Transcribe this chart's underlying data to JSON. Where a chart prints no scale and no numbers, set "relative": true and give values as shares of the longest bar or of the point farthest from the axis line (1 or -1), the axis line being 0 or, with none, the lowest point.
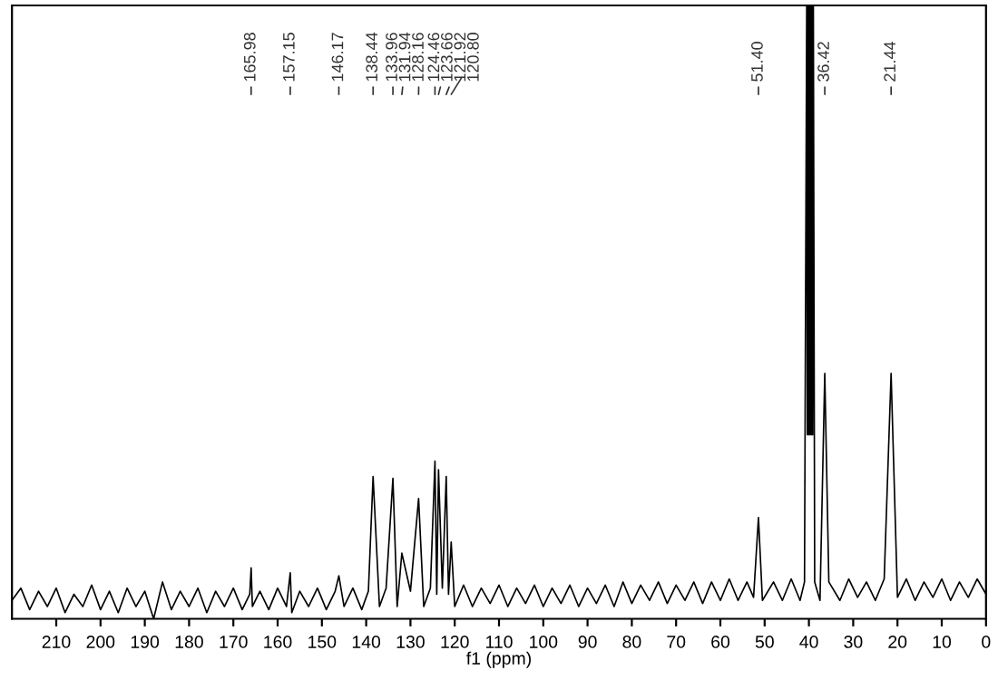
{
  "chart_data": {
    "type": "line",
    "relative": true,
    "xlabel": "f1 (ppm)",
    "color": "#000000",
    "xlim": [
      220,
      0
    ],
    "xticks": [
      210,
      200,
      190,
      180,
      170,
      160,
      150,
      140,
      130,
      120,
      110,
      100,
      90,
      80,
      70,
      60,
      50,
      40,
      30,
      20,
      10,
      0
    ],
    "tick_labels": "x",
    "grid": false,
    "x": [
      220,
      218,
      216,
      214,
      212,
      210,
      208,
      206,
      204,
      202,
      200,
      198,
      196,
      194,
      192,
      190,
      188,
      186,
      184,
      182,
      180,
      178,
      176,
      174,
      172,
      170,
      168,
      166.3,
      165.98,
      165.7,
      164,
      162,
      160,
      158,
      157.15,
      156.8,
      155,
      153,
      151,
      149,
      147,
      146.17,
      145,
      143,
      141,
      139.5,
      138.44,
      137,
      135.5,
      133.96,
      133,
      131.94,
      130,
      128.16,
      127,
      125.5,
      124.46,
      124.06,
      123.66,
      122.8,
      121.92,
      121.4,
      120.8,
      120,
      118,
      116,
      114,
      112,
      110,
      108,
      106,
      104,
      102,
      100,
      98,
      96,
      94,
      92,
      90,
      88,
      86,
      84,
      82,
      80,
      78,
      76,
      74,
      72,
      70,
      68,
      66,
      64,
      62,
      60,
      58,
      56,
      54,
      52.5,
      51.4,
      50.5,
      48,
      46,
      44,
      42,
      41,
      40.5,
      40.35,
      40.2,
      40.05,
      39.9,
      39.75,
      39.6,
      39.45,
      39.3,
      39.15,
      39.0,
      38.7,
      37.5,
      36.42,
      35.5,
      33,
      31,
      29,
      27,
      25,
      23,
      21.44,
      20,
      18,
      16,
      14,
      12,
      10,
      8,
      6,
      4,
      2,
      0
    ],
    "values": [
      0.03,
      0.05,
      0.015,
      0.045,
      0.02,
      0.05,
      0.01,
      0.04,
      0.02,
      0.055,
      0.015,
      0.045,
      0.01,
      0.05,
      0.02,
      0.045,
      0.0,
      0.06,
      0.015,
      0.045,
      0.02,
      0.05,
      0.01,
      0.045,
      0.02,
      0.05,
      0.015,
      0.04,
      0.083,
      0.02,
      0.045,
      0.015,
      0.05,
      0.02,
      0.075,
      0.01,
      0.045,
      0.02,
      0.05,
      0.015,
      0.045,
      0.07,
      0.02,
      0.05,
      0.015,
      0.045,
      0.232,
      0.02,
      0.05,
      0.229,
      0.02,
      0.107,
      0.045,
      0.196,
      0.02,
      0.05,
      0.257,
      0.04,
      0.243,
      0.05,
      0.232,
      0.04,
      0.125,
      0.02,
      0.055,
      0.02,
      0.05,
      0.025,
      0.055,
      0.02,
      0.05,
      0.025,
      0.055,
      0.02,
      0.05,
      0.025,
      0.055,
      0.02,
      0.05,
      0.025,
      0.055,
      0.02,
      0.06,
      0.025,
      0.055,
      0.03,
      0.06,
      0.025,
      0.055,
      0.03,
      0.06,
      0.025,
      0.06,
      0.03,
      0.065,
      0.03,
      0.06,
      0.035,
      0.165,
      0.03,
      0.06,
      0.03,
      0.065,
      0.03,
      0.06,
      1.0,
      0.3,
      1.0,
      0.3,
      1.0,
      0.3,
      1.0,
      0.3,
      1.0,
      0.3,
      1.0,
      0.06,
      0.03,
      0.4,
      0.06,
      0.03,
      0.065,
      0.035,
      0.06,
      0.03,
      0.065,
      0.4,
      0.035,
      0.065,
      0.03,
      0.06,
      0.035,
      0.065,
      0.03,
      0.06,
      0.035,
      0.065,
      0.04
    ],
    "annotations": [
      "165.98",
      "157.15",
      "146.17",
      "138.44",
      "133.96",
      "131.94",
      "128.16",
      "124.46",
      "123.66",
      "121.92",
      "120.80",
      "51.40",
      "36.42",
      "21.44"
    ]
  }
}
